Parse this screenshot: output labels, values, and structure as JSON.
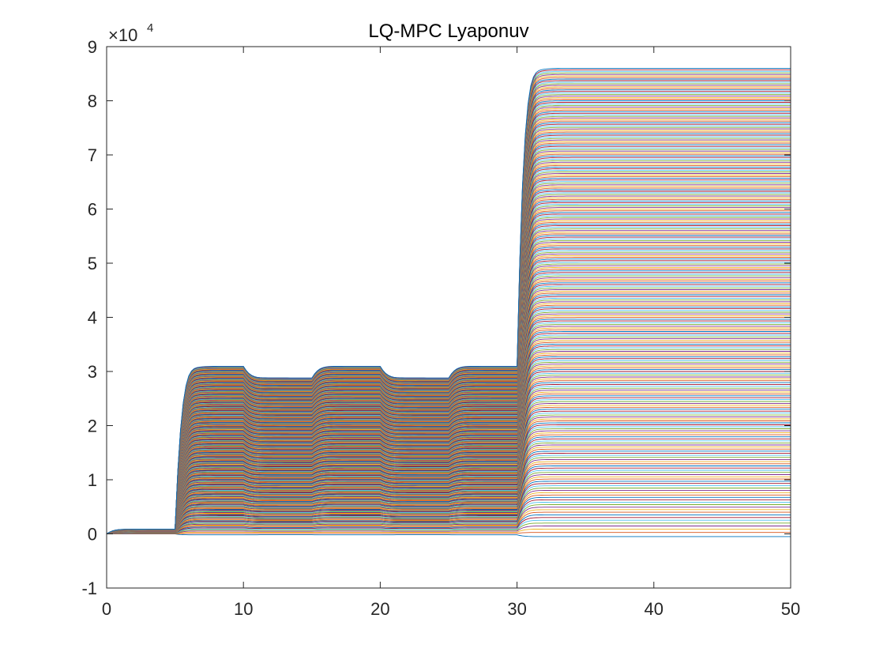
{
  "chart_data": {
    "type": "line",
    "title": "LQ-MPC Lyaponuv",
    "xlabel": "",
    "ylabel": "",
    "xlim": [
      0,
      50
    ],
    "ylim": [
      -10000,
      90000
    ],
    "x_ticks": [
      0,
      10,
      20,
      30,
      40,
      50
    ],
    "x_tick_labels": [
      "0",
      "10",
      "20",
      "30",
      "40",
      "50"
    ],
    "y_ticks": [
      -10000,
      0,
      10000,
      20000,
      30000,
      40000,
      50000,
      60000,
      70000,
      80000,
      90000
    ],
    "y_tick_labels": [
      "-1",
      "0",
      "1",
      "2",
      "3",
      "4",
      "5",
      "6",
      "7",
      "8",
      "9"
    ],
    "y_exponent_base": "×10",
    "y_exponent_power": "4",
    "grid": false,
    "legend": "none",
    "num_series": 260,
    "profile": {
      "breakpoints_x": [
        0,
        5,
        10,
        15,
        20,
        25,
        30,
        50
      ],
      "segment_levels_fraction_of_final": [
        0.01,
        0.36,
        0.335,
        0.36,
        0.335,
        0.36,
        1.0
      ],
      "final_level_range": [
        -500,
        86000
      ],
      "step_overshoot_peak": 90000
    },
    "color_order": [
      "#0072BD",
      "#D95319",
      "#EDB120",
      "#7E2F8E",
      "#77AC30",
      "#4DBEEE",
      "#A2142F"
    ]
  }
}
